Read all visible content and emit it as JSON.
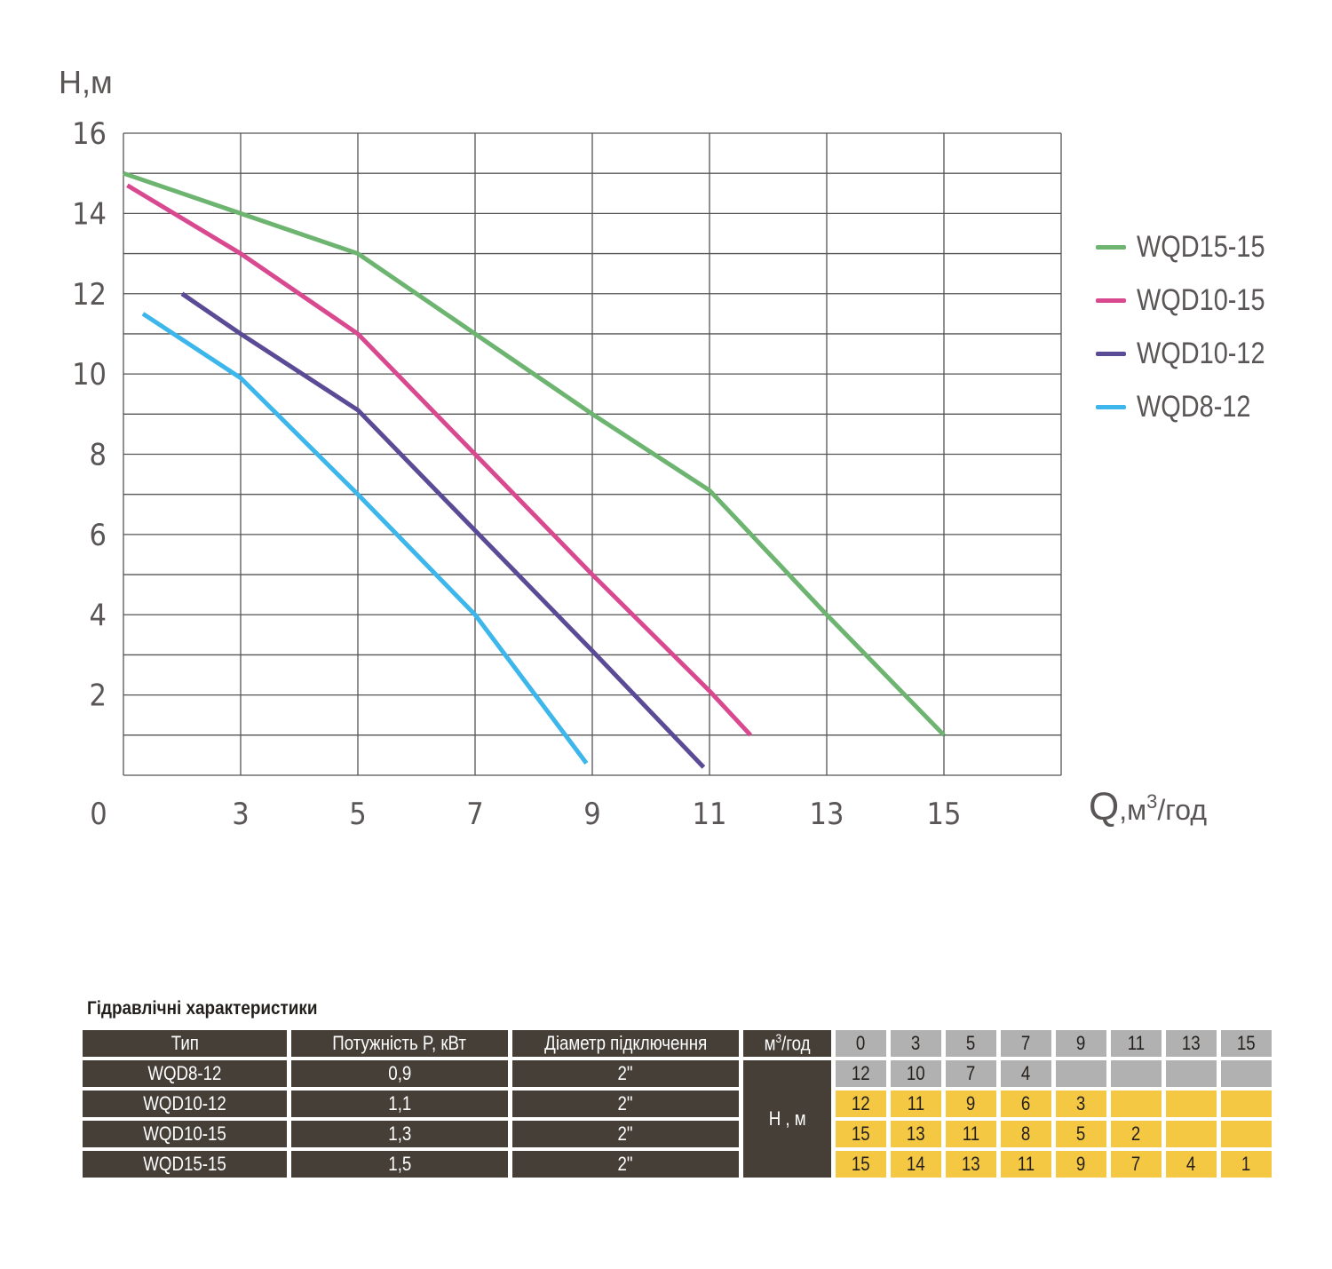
{
  "chart_data": {
    "type": "line",
    "title": "",
    "ylabel": "H,м",
    "xlabel": "Q,м³/год",
    "xlabel_parts": {
      "q": "Q",
      "unit_a": ",м",
      "unit_sup": "3",
      "unit_b": "/год"
    },
    "ylim": [
      0,
      16
    ],
    "yticks": [
      0,
      2,
      4,
      6,
      8,
      10,
      12,
      14,
      16
    ],
    "xticks": [
      0,
      3,
      5,
      7,
      9,
      11,
      13,
      15
    ],
    "grid": true,
    "legend_position": "right",
    "series": [
      {
        "name": "WQD15-15",
        "color": "#6cb470",
        "points": [
          [
            0,
            15
          ],
          [
            3,
            14
          ],
          [
            5,
            13
          ],
          [
            7,
            11
          ],
          [
            9,
            9
          ],
          [
            11,
            7.1
          ],
          [
            13,
            4
          ],
          [
            15,
            1
          ]
        ]
      },
      {
        "name": "WQD10-15",
        "color": "#d9498f",
        "points": [
          [
            0.1,
            14.7
          ],
          [
            3,
            13
          ],
          [
            5,
            11
          ],
          [
            7,
            8
          ],
          [
            9,
            5
          ],
          [
            11,
            2.1
          ],
          [
            11.7,
            1
          ]
        ]
      },
      {
        "name": "WQD10-12",
        "color": "#5b4a95",
        "points": [
          [
            1.5,
            12
          ],
          [
            3,
            11
          ],
          [
            5,
            9.1
          ],
          [
            7,
            6.1
          ],
          [
            9,
            3.1
          ],
          [
            10.9,
            0.2
          ]
        ]
      },
      {
        "name": "WQD8-12",
        "color": "#3cb6eb",
        "points": [
          [
            0.5,
            11.5
          ],
          [
            3,
            9.9
          ],
          [
            5,
            7
          ],
          [
            7,
            4
          ],
          [
            8.9,
            0.3
          ]
        ]
      }
    ]
  },
  "table": {
    "title": "Гідравлічні характеристики",
    "headers": [
      "Тип",
      "Потужність P, кВт",
      "Діаметр підключення"
    ],
    "flow_header": {
      "a": "м",
      "sup": "3",
      "b": "/год"
    },
    "flow_values": [
      "0",
      "3",
      "5",
      "7",
      "9",
      "11",
      "13",
      "15"
    ],
    "head_label": "H , м",
    "rows": [
      {
        "type": "WQD8-12",
        "power": "0,9",
        "diameter": "2\"",
        "head": [
          "12",
          "10",
          "7",
          "4",
          "",
          "",
          "",
          ""
        ]
      },
      {
        "type": "WQD10-12",
        "power": "1,1",
        "diameter": "2\"",
        "head": [
          "12",
          "11",
          "9",
          "6",
          "3",
          "",
          "",
          ""
        ]
      },
      {
        "type": "WQD10-15",
        "power": "1,3",
        "diameter": "2\"",
        "head": [
          "15",
          "13",
          "11",
          "8",
          "5",
          "2",
          "",
          ""
        ]
      },
      {
        "type": "WQD15-15",
        "power": "1,5",
        "diameter": "2\"",
        "head": [
          "15",
          "14",
          "13",
          "11",
          "9",
          "7",
          "4",
          "1"
        ]
      }
    ],
    "colors": {
      "dark": "#463f38",
      "gray": "#b2b1b1",
      "yellow": "#f5c843"
    }
  }
}
